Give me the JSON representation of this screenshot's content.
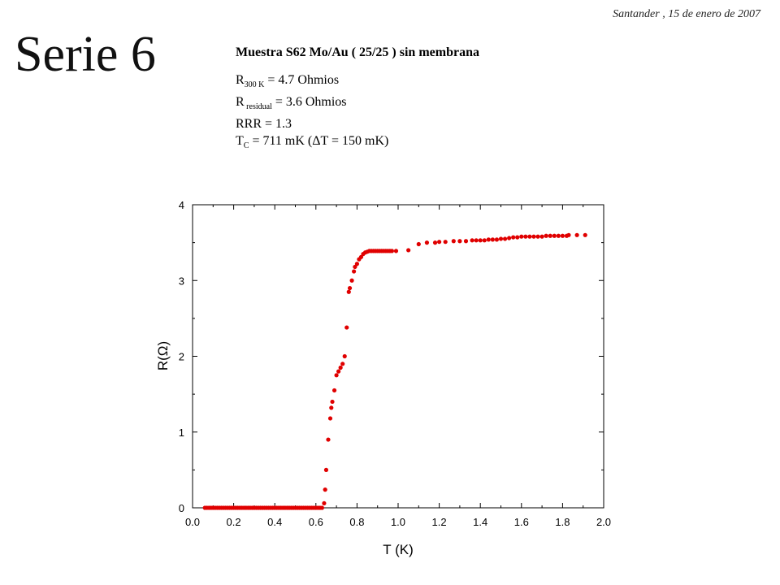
{
  "header": {
    "date": "Santander , 15 de enero de 2007",
    "title": "Serie 6"
  },
  "info": {
    "sample": "Muestra S62 Mo/Au ( 25/25 ) sin membrana",
    "r300_main": "R",
    "r300_sub": "300 K",
    "r300_value": " = 4.7 Ohmios",
    "rres_main": "R",
    "rres_sub": " residual",
    "rres_value": " = 3.6 Ohmios",
    "rrr": "RRR = 1.3",
    "tc_main": "T",
    "tc_sub": "C",
    "tc_value": " = 711 mK (ΔT = 150 mK)"
  },
  "chart_data": {
    "type": "scatter",
    "title": "",
    "xlabel": "T (K)",
    "ylabel": "R(Ω)",
    "xlim": [
      0.0,
      2.0
    ],
    "ylim": [
      0,
      4
    ],
    "xticks": [
      "0.0",
      "0.2",
      "0.4",
      "0.6",
      "0.8",
      "1.0",
      "1.2",
      "1.4",
      "1.6",
      "1.8",
      "2.0"
    ],
    "yticks": [
      "0",
      "1",
      "2",
      "3",
      "4"
    ],
    "marker_color": "#e00000",
    "series": [
      {
        "x": [
          0.06,
          0.07,
          0.08,
          0.09,
          0.1,
          0.11,
          0.12,
          0.13,
          0.14,
          0.15,
          0.16,
          0.17,
          0.18,
          0.19,
          0.2,
          0.21,
          0.22,
          0.23,
          0.24,
          0.25,
          0.26,
          0.27,
          0.28,
          0.29,
          0.3,
          0.31,
          0.32,
          0.33,
          0.34,
          0.35,
          0.36,
          0.37,
          0.38,
          0.39,
          0.4,
          0.41,
          0.42,
          0.43,
          0.44,
          0.45,
          0.46,
          0.47,
          0.48,
          0.49,
          0.5,
          0.51,
          0.52,
          0.53,
          0.54,
          0.55,
          0.56,
          0.57,
          0.58,
          0.59,
          0.6,
          0.61,
          0.62,
          0.63,
          0.64,
          0.645,
          0.65,
          0.66,
          0.67,
          0.675,
          0.68,
          0.69,
          0.7,
          0.71,
          0.72,
          0.73,
          0.74,
          0.75,
          0.76,
          0.765,
          0.775,
          0.785,
          0.79,
          0.8,
          0.81,
          0.82,
          0.83,
          0.84,
          0.85,
          0.86,
          0.87,
          0.88,
          0.89,
          0.9,
          0.91,
          0.92,
          0.93,
          0.94,
          0.95,
          0.96,
          0.97,
          0.99,
          1.05,
          1.1,
          1.14,
          1.18,
          1.2,
          1.23,
          1.27,
          1.3,
          1.33,
          1.36,
          1.38,
          1.4,
          1.42,
          1.44,
          1.46,
          1.48,
          1.5,
          1.52,
          1.54,
          1.56,
          1.58,
          1.6,
          1.62,
          1.64,
          1.66,
          1.68,
          1.7,
          1.72,
          1.74,
          1.76,
          1.78,
          1.8,
          1.82,
          1.83,
          1.87,
          1.91
        ],
        "y": [
          0.0,
          0.0,
          0.0,
          0.0,
          0.0,
          0.0,
          0.0,
          0.0,
          0.0,
          0.0,
          0.0,
          0.0,
          0.0,
          0.0,
          0.0,
          0.0,
          0.0,
          0.0,
          0.0,
          0.0,
          0.0,
          0.0,
          0.0,
          0.0,
          0.0,
          0.0,
          0.0,
          0.0,
          0.0,
          0.0,
          0.0,
          0.0,
          0.0,
          0.0,
          0.0,
          0.0,
          0.0,
          0.0,
          0.0,
          0.0,
          0.0,
          0.0,
          0.0,
          0.0,
          0.0,
          0.0,
          0.0,
          0.0,
          0.0,
          0.0,
          0.0,
          0.0,
          0.0,
          0.0,
          0.0,
          0.0,
          0.0,
          0.0,
          0.06,
          0.24,
          0.5,
          0.9,
          1.18,
          1.32,
          1.4,
          1.55,
          1.75,
          1.8,
          1.85,
          1.9,
          2.0,
          2.38,
          2.85,
          2.9,
          3.0,
          3.12,
          3.18,
          3.22,
          3.28,
          3.31,
          3.35,
          3.37,
          3.38,
          3.39,
          3.39,
          3.39,
          3.39,
          3.39,
          3.39,
          3.39,
          3.39,
          3.39,
          3.39,
          3.39,
          3.39,
          3.39,
          3.4,
          3.48,
          3.5,
          3.5,
          3.51,
          3.51,
          3.52,
          3.52,
          3.52,
          3.53,
          3.53,
          3.53,
          3.53,
          3.54,
          3.54,
          3.54,
          3.55,
          3.55,
          3.56,
          3.57,
          3.57,
          3.58,
          3.58,
          3.58,
          3.58,
          3.58,
          3.58,
          3.59,
          3.59,
          3.59,
          3.59,
          3.59,
          3.59,
          3.6,
          3.6,
          3.6
        ]
      }
    ]
  }
}
